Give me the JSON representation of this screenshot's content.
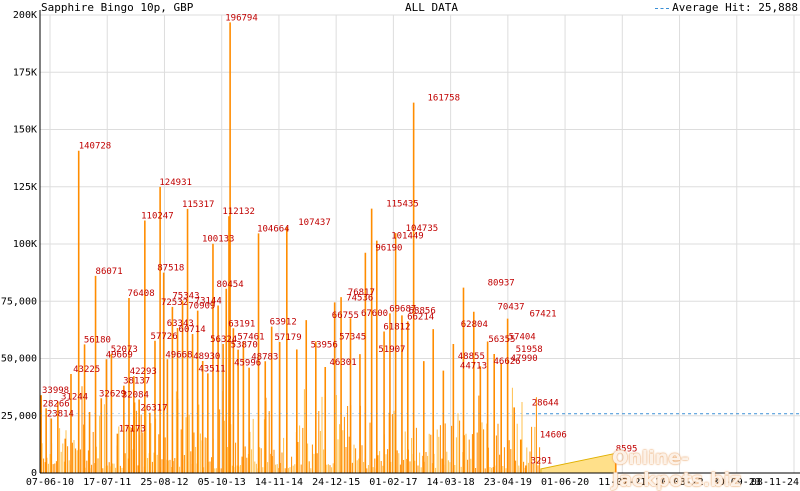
{
  "header": {
    "title": "Sapphire Bingo 10p, GBP",
    "center": "ALL DATA",
    "legend_label": "Average Hit: 25,888"
  },
  "watermark": "Online-Jackpots.biz",
  "colors": {
    "bar": "#ff8c00",
    "bar_light": "#ffc04d",
    "tail_fill": "#ffe08a",
    "label": "#c00000",
    "average_line": "#3a8fd6",
    "grid": "#dddddd"
  },
  "chart_data": {
    "type": "bar",
    "title": "Sapphire Bingo 10p, GBP",
    "subtitle": "ALL DATA",
    "xlabel": "",
    "ylabel": "",
    "ylim": [
      0,
      200000
    ],
    "y_ticks": [
      0,
      25000,
      50000,
      75000,
      100000,
      125000,
      150000,
      175000,
      200000
    ],
    "y_tick_labels": [
      "0",
      "25,000",
      "50,000",
      "75,000",
      "100K",
      "125K",
      "150K",
      "175K",
      "200K"
    ],
    "x_tick_labels": [
      "07-06-10",
      "17-07-11",
      "25-08-12",
      "05-10-13",
      "14-11-14",
      "24-12-15",
      "01-02-17",
      "14-03-18",
      "23-04-19",
      "01-06-20",
      "11-07-21",
      "20-08-22",
      "30-09-23",
      "08-11-24"
    ],
    "x_range": [
      "2010-06-07",
      "2024-12-31"
    ],
    "grid": true,
    "legend_placement": "top-right",
    "average_hit": 25888,
    "series": [
      {
        "name": "hits",
        "points": [
          {
            "date": "2010-06-15",
            "value": 33998
          },
          {
            "date": "2010-07-20",
            "value": 28266
          },
          {
            "date": "2010-08-25",
            "value": 23814
          },
          {
            "date": "2010-10-10",
            "value": 31244
          },
          {
            "date": "2010-12-01",
            "value": 15000
          },
          {
            "date": "2011-01-10",
            "value": 43225
          },
          {
            "date": "2011-03-05",
            "value": 140728
          },
          {
            "date": "2011-04-15",
            "value": 56180
          },
          {
            "date": "2011-05-20",
            "value": 26636
          },
          {
            "date": "2011-07-01",
            "value": 86071
          },
          {
            "date": "2011-08-10",
            "value": 32629
          },
          {
            "date": "2011-09-15",
            "value": 49669
          },
          {
            "date": "2011-10-20",
            "value": 52073
          },
          {
            "date": "2011-12-01",
            "value": 17173
          },
          {
            "date": "2012-01-15",
            "value": 38137
          },
          {
            "date": "2012-02-20",
            "value": 76408
          },
          {
            "date": "2012-03-25",
            "value": 42293
          },
          {
            "date": "2012-05-01",
            "value": 32084
          },
          {
            "date": "2012-06-10",
            "value": 110247
          },
          {
            "date": "2012-07-15",
            "value": 26317
          },
          {
            "date": "2012-08-20",
            "value": 57726
          },
          {
            "date": "2012-09-25",
            "value": 124931
          },
          {
            "date": "2012-10-20",
            "value": 87518
          },
          {
            "date": "2012-11-15",
            "value": 49668
          },
          {
            "date": "2012-12-20",
            "value": 72532
          },
          {
            "date": "2013-01-25",
            "value": 63343
          },
          {
            "date": "2013-03-01",
            "value": 75343
          },
          {
            "date": "2013-04-05",
            "value": 115317
          },
          {
            "date": "2013-05-10",
            "value": 60714
          },
          {
            "date": "2013-06-15",
            "value": 70909
          },
          {
            "date": "2013-07-20",
            "value": 48930
          },
          {
            "date": "2013-08-25",
            "value": 43511
          },
          {
            "date": "2013-09-30",
            "value": 100133
          },
          {
            "date": "2013-11-05",
            "value": 73144
          },
          {
            "date": "2013-12-10",
            "value": 56324
          },
          {
            "date": "2014-01-01",
            "value": 80454
          },
          {
            "date": "2014-01-20",
            "value": 112132
          },
          {
            "date": "2014-01-28",
            "value": 196794
          },
          {
            "date": "2014-02-20",
            "value": 63191
          },
          {
            "date": "2014-03-25",
            "value": 53870
          },
          {
            "date": "2014-05-01",
            "value": 57461
          },
          {
            "date": "2014-06-10",
            "value": 45996
          },
          {
            "date": "2014-08-15",
            "value": 104664
          },
          {
            "date": "2014-10-01",
            "value": 48783
          },
          {
            "date": "2014-11-15",
            "value": 63912
          },
          {
            "date": "2015-01-10",
            "value": 57179
          },
          {
            "date": "2015-03-01",
            "value": 107437
          },
          {
            "date": "2015-05-10",
            "value": 53956
          },
          {
            "date": "2015-07-15",
            "value": 66755
          },
          {
            "date": "2015-09-20",
            "value": 57345
          },
          {
            "date": "2015-11-25",
            "value": 46301
          },
          {
            "date": "2016-01-30",
            "value": 74536
          },
          {
            "date": "2016-03-15",
            "value": 76817
          },
          {
            "date": "2016-05-20",
            "value": 67600
          },
          {
            "date": "2016-07-25",
            "value": 51907
          },
          {
            "date": "2016-09-01",
            "value": 96190
          },
          {
            "date": "2016-10-15",
            "value": 115435
          },
          {
            "date": "2016-11-20",
            "value": 101449
          },
          {
            "date": "2017-01-10",
            "value": 61812
          },
          {
            "date": "2017-02-20",
            "value": 69687
          },
          {
            "date": "2017-04-01",
            "value": 104735
          },
          {
            "date": "2017-05-15",
            "value": 68856
          },
          {
            "date": "2017-06-25",
            "value": 66214
          },
          {
            "date": "2017-08-05",
            "value": 161758
          },
          {
            "date": "2017-10-15",
            "value": 48855
          },
          {
            "date": "2017-12-20",
            "value": 62804
          },
          {
            "date": "2018-03-01",
            "value": 44713
          },
          {
            "date": "2018-05-10",
            "value": 56355
          },
          {
            "date": "2018-07-20",
            "value": 80937
          },
          {
            "date": "2018-09-30",
            "value": 70437
          },
          {
            "date": "2018-11-15",
            "value": 46626
          },
          {
            "date": "2019-01-05",
            "value": 57404
          },
          {
            "date": "2019-02-20",
            "value": 51958
          },
          {
            "date": "2019-04-10",
            "value": 47990
          },
          {
            "date": "2019-05-25",
            "value": 67421
          },
          {
            "date": "2019-07-10",
            "value": 28644
          },
          {
            "date": "2019-08-25",
            "value": 14606
          },
          {
            "date": "2019-09-30",
            "value": 3291
          },
          {
            "date": "2021-06-20",
            "value": 8595
          }
        ]
      }
    ],
    "labels": [
      {
        "date": "2010-06-15",
        "value": 33998,
        "text": "33998"
      },
      {
        "date": "2010-06-25",
        "value": 28266,
        "text": "28266"
      },
      {
        "date": "2010-07-25",
        "value": 23814,
        "text": "23814"
      },
      {
        "date": "2010-11-01",
        "value": 31244,
        "text": "31244"
      },
      {
        "date": "2011-01-25",
        "value": 43225,
        "text": "43225"
      },
      {
        "date": "2011-03-05",
        "value": 140728,
        "text": "140728"
      },
      {
        "date": "2011-04-10",
        "value": 56180,
        "text": "56180"
      },
      {
        "date": "2011-07-01",
        "value": 86071,
        "text": "86071"
      },
      {
        "date": "2011-07-25",
        "value": 32629,
        "text": "32629"
      },
      {
        "date": "2011-09-10",
        "value": 49669,
        "text": "49669"
      },
      {
        "date": "2011-10-15",
        "value": 52073,
        "text": "52073"
      },
      {
        "date": "2011-12-10",
        "value": 17173,
        "text": "17173"
      },
      {
        "date": "2012-01-10",
        "value": 38137,
        "text": "38137"
      },
      {
        "date": "2012-02-10",
        "value": 76408,
        "text": "76408"
      },
      {
        "date": "2012-02-25",
        "value": 42293,
        "text": "42293"
      },
      {
        "date": "2012-01-01",
        "value": 32084,
        "text": "32084"
      },
      {
        "date": "2012-05-15",
        "value": 110247,
        "text": "110247"
      },
      {
        "date": "2012-05-10",
        "value": 26317,
        "text": "26317"
      },
      {
        "date": "2012-07-20",
        "value": 57726,
        "text": "57726"
      },
      {
        "date": "2012-09-20",
        "value": 124931,
        "text": "124931"
      },
      {
        "date": "2012-09-05",
        "value": 87518,
        "text": "87518"
      },
      {
        "date": "2012-11-01",
        "value": 49668,
        "text": "49668"
      },
      {
        "date": "2012-10-01",
        "value": 72532,
        "text": "72532"
      },
      {
        "date": "2012-11-10",
        "value": 63343,
        "text": "63343"
      },
      {
        "date": "2012-12-20",
        "value": 75343,
        "text": "75343"
      },
      {
        "date": "2013-02-25",
        "value": 115317,
        "text": "115317"
      },
      {
        "date": "2013-02-01",
        "value": 60714,
        "text": "60714"
      },
      {
        "date": "2013-04-10",
        "value": 70909,
        "text": "70909"
      },
      {
        "date": "2013-05-15",
        "value": 48930,
        "text": "48930"
      },
      {
        "date": "2013-06-20",
        "value": 43511,
        "text": "43511"
      },
      {
        "date": "2013-07-15",
        "value": 100133,
        "text": "100133"
      },
      {
        "date": "2013-05-25",
        "value": 73144,
        "text": "73144"
      },
      {
        "date": "2013-09-10",
        "value": 56324,
        "text": "56324"
      },
      {
        "date": "2013-10-25",
        "value": 80454,
        "text": "80454"
      },
      {
        "date": "2013-12-05",
        "value": 112132,
        "text": "112132"
      },
      {
        "date": "2013-12-25",
        "value": 196794,
        "text": "196794"
      },
      {
        "date": "2014-01-15",
        "value": 63191,
        "text": "63191"
      },
      {
        "date": "2014-02-01",
        "value": 53870,
        "text": "53870"
      },
      {
        "date": "2014-03-20",
        "value": 57461,
        "text": "57461"
      },
      {
        "date": "2014-02-25",
        "value": 45996,
        "text": "45996"
      },
      {
        "date": "2014-08-05",
        "value": 104664,
        "text": "104664"
      },
      {
        "date": "2014-06-25",
        "value": 48783,
        "text": "48783"
      },
      {
        "date": "2014-11-01",
        "value": 63912,
        "text": "63912"
      },
      {
        "date": "2014-12-05",
        "value": 57179,
        "text": "57179"
      },
      {
        "date": "2015-05-20",
        "value": 107437,
        "text": "107437"
      },
      {
        "date": "2015-08-15",
        "value": 53956,
        "text": "53956"
      },
      {
        "date": "2016-01-10",
        "value": 66755,
        "text": "66755"
      },
      {
        "date": "2016-03-01",
        "value": 57345,
        "text": "57345"
      },
      {
        "date": "2015-12-25",
        "value": 46301,
        "text": "46301"
      },
      {
        "date": "2016-04-20",
        "value": 74536,
        "text": "74536"
      },
      {
        "date": "2016-05-01",
        "value": 76817,
        "text": "76817"
      },
      {
        "date": "2016-08-01",
        "value": 67600,
        "text": "67600"
      },
      {
        "date": "2016-12-01",
        "value": 51907,
        "text": "51907"
      },
      {
        "date": "2016-11-10",
        "value": 96190,
        "text": "96190"
      },
      {
        "date": "2017-01-25",
        "value": 115435,
        "text": "115435"
      },
      {
        "date": "2017-03-01",
        "value": 101449,
        "text": "101449"
      },
      {
        "date": "2017-01-05",
        "value": 61812,
        "text": "61812"
      },
      {
        "date": "2017-02-15",
        "value": 69687,
        "text": "69687"
      },
      {
        "date": "2017-06-10",
        "value": 104735,
        "text": "104735"
      },
      {
        "date": "2017-07-01",
        "value": 68856,
        "text": "68856"
      },
      {
        "date": "2017-06-20",
        "value": 66214,
        "text": "66214"
      },
      {
        "date": "2017-11-10",
        "value": 161758,
        "text": "161758"
      },
      {
        "date": "2018-06-10",
        "value": 48855,
        "text": "48855"
      },
      {
        "date": "2018-07-01",
        "value": 62804,
        "text": "62804"
      },
      {
        "date": "2018-06-25",
        "value": 44713,
        "text": "44713"
      },
      {
        "date": "2019-01-10",
        "value": 56355,
        "text": "56355"
      },
      {
        "date": "2019-01-05",
        "value": 80937,
        "text": "80937"
      },
      {
        "date": "2019-03-15",
        "value": 70437,
        "text": "70437"
      },
      {
        "date": "2019-02-15",
        "value": 46626,
        "text": "46626"
      },
      {
        "date": "2019-06-01",
        "value": 57404,
        "text": "57404"
      },
      {
        "date": "2019-07-20",
        "value": 51958,
        "text": "51958"
      },
      {
        "date": "2019-06-15",
        "value": 47990,
        "text": "47990"
      },
      {
        "date": "2019-10-25",
        "value": 67421,
        "text": "67421"
      },
      {
        "date": "2019-11-10",
        "value": 28644,
        "text": "28644"
      },
      {
        "date": "2020-01-05",
        "value": 14606,
        "text": "14606"
      },
      {
        "date": "2019-11-01",
        "value": 3291,
        "text": "3291"
      },
      {
        "date": "2021-06-20",
        "value": 8595,
        "text": "8595"
      }
    ]
  }
}
